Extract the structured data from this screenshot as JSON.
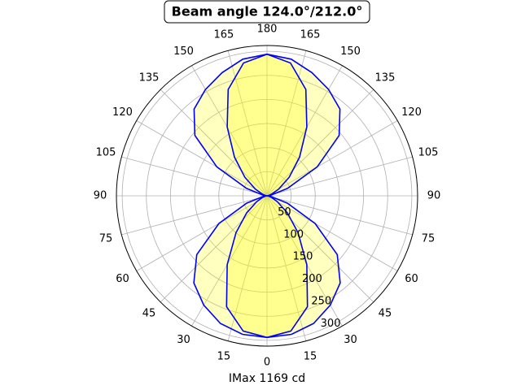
{
  "chart_data": {
    "type": "polar",
    "title": "Beam angle 124.0°/212.0°",
    "xlabel": "IMax 1169 cd",
    "theta": [
      0,
      10,
      20,
      30,
      40,
      50,
      60,
      70,
      80,
      90,
      100,
      110,
      120,
      130,
      140,
      150,
      160,
      170,
      180,
      190,
      200,
      210,
      220,
      230,
      240,
      250,
      260,
      270,
      280,
      290,
      300,
      310,
      320,
      330,
      340,
      350
    ],
    "series": [
      {
        "color": "#0000ff",
        "fill": "#ffff00",
        "values": [
          294,
          292,
          282,
          262,
          236,
          190,
          115,
          45,
          8,
          0,
          8,
          45,
          120,
          195,
          235,
          255,
          272,
          288,
          294,
          288,
          272,
          255,
          235,
          195,
          120,
          45,
          8,
          0,
          8,
          45,
          115,
          190,
          236,
          262,
          282,
          292
        ]
      },
      {
        "color": "#0000ff",
        "fill": "#ffff00",
        "values": [
          294,
          285,
          245,
          165,
          100,
          55,
          25,
          10,
          3,
          0,
          3,
          10,
          28,
          60,
          105,
          165,
          235,
          280,
          294,
          280,
          235,
          165,
          105,
          60,
          28,
          10,
          3,
          0,
          3,
          10,
          25,
          55,
          100,
          165,
          245,
          285
        ]
      }
    ],
    "rlim": [
      0,
      312
    ],
    "rticks": [
      50,
      100,
      150,
      200,
      250,
      300
    ],
    "thetaticks": [
      0,
      15,
      30,
      45,
      60,
      75,
      90,
      105,
      120,
      135,
      150,
      165,
      180,
      {
        "value": 195,
        "label": "165"
      },
      {
        "value": 210,
        "label": "150"
      },
      {
        "value": 225,
        "label": "135"
      },
      {
        "value": 240,
        "label": "120"
      },
      {
        "value": 255,
        "label": "105"
      },
      {
        "value": 270,
        "label": "90"
      },
      {
        "value": 285,
        "label": "75"
      },
      {
        "value": 300,
        "label": "60"
      },
      {
        "value": 315,
        "label": "45"
      },
      {
        "value": 330,
        "label": "30"
      },
      {
        "value": 345,
        "label": "15"
      }
    ],
    "grid": true
  }
}
